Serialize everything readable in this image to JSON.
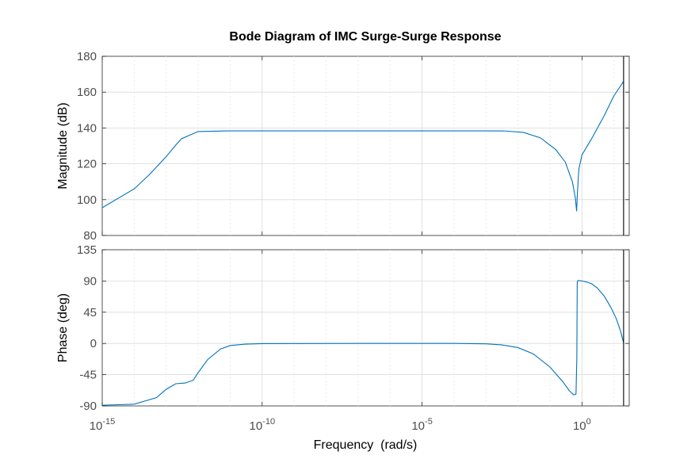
{
  "chart_data": {
    "type": "line",
    "title": "Bode Diagram of IMC Surge-Surge Response",
    "xlabel": "Frequency  (rad/s)",
    "x_scale": "log",
    "xlim": [
      1e-15,
      30
    ],
    "x_ticks": [
      1e-15,
      1e-10,
      1e-05,
      1
    ],
    "x_tick_labels": [
      {
        "base": "10",
        "exp": "-15"
      },
      {
        "base": "10",
        "exp": "-10"
      },
      {
        "base": "10",
        "exp": "-5"
      },
      {
        "base": "10",
        "exp": "0"
      }
    ],
    "grid": true,
    "nyquist_frequency": 20,
    "panels": [
      {
        "name": "magnitude",
        "ylabel": "Magnitude (dB)",
        "ylim": [
          80,
          180
        ],
        "y_ticks": [
          80,
          100,
          120,
          140,
          160,
          180
        ],
        "y_tick_labels": [
          "80",
          "100",
          "120",
          "140",
          "160",
          "180"
        ],
        "series": [
          {
            "x": [
              1e-15,
              1e-14,
              3e-14,
              1e-13,
              2e-13,
              3e-13,
              1e-12,
              1e-11,
              1e-10,
              1e-08,
              1e-06,
              0.0001,
              0.001,
              0.004,
              0.015,
              0.05,
              0.15,
              0.3,
              0.5,
              0.62,
              0.68,
              0.72,
              0.8,
              1.0,
              2.0,
              5.0,
              10.0,
              20.0
            ],
            "y": [
              95.5,
              106,
              114,
              124,
              130.5,
              134,
              138,
              138.4,
              138.4,
              138.4,
              138.4,
              138.4,
              138.4,
              138.3,
              137.5,
              134.5,
              128,
              121,
              110,
              101,
              93.5,
              104,
              117,
              125,
              134,
              147,
              158,
              166
            ]
          }
        ]
      },
      {
        "name": "phase",
        "ylabel": "Phase (deg)",
        "ylim": [
          -90,
          135
        ],
        "y_ticks": [
          -90,
          -45,
          0,
          45,
          90,
          135
        ],
        "y_tick_labels": [
          "-90",
          "-45",
          "0",
          "45",
          "90",
          "135"
        ],
        "series": [
          {
            "x": [
              1e-15,
              1e-14,
              5e-14,
              1e-13,
              2e-13,
              4e-13,
              7e-13,
              1e-12,
              2e-12,
              5e-12,
              1e-11,
              3e-11,
              1e-10,
              1e-07,
              0.0001,
              0.001,
              0.003,
              0.01,
              0.03,
              0.1,
              0.25,
              0.4,
              0.55,
              0.65,
              0.69,
              0.71,
              0.74,
              0.8,
              1.0,
              1.5,
              2.0,
              3.0,
              5.0,
              8.0,
              12.0,
              16.0,
              20.0
            ],
            "y": [
              -89,
              -87.5,
              -78,
              -66,
              -58,
              -57,
              -53,
              -42,
              -23,
              -8,
              -3,
              -1,
              -0.3,
              0,
              0,
              -0.5,
              -2,
              -6,
              -15,
              -34,
              -55,
              -68,
              -74,
              -73,
              -20,
              88,
              90.5,
              90.5,
              90,
              88,
              86,
              80,
              68,
              52,
              35,
              18,
              1
            ]
          }
        ]
      }
    ]
  }
}
